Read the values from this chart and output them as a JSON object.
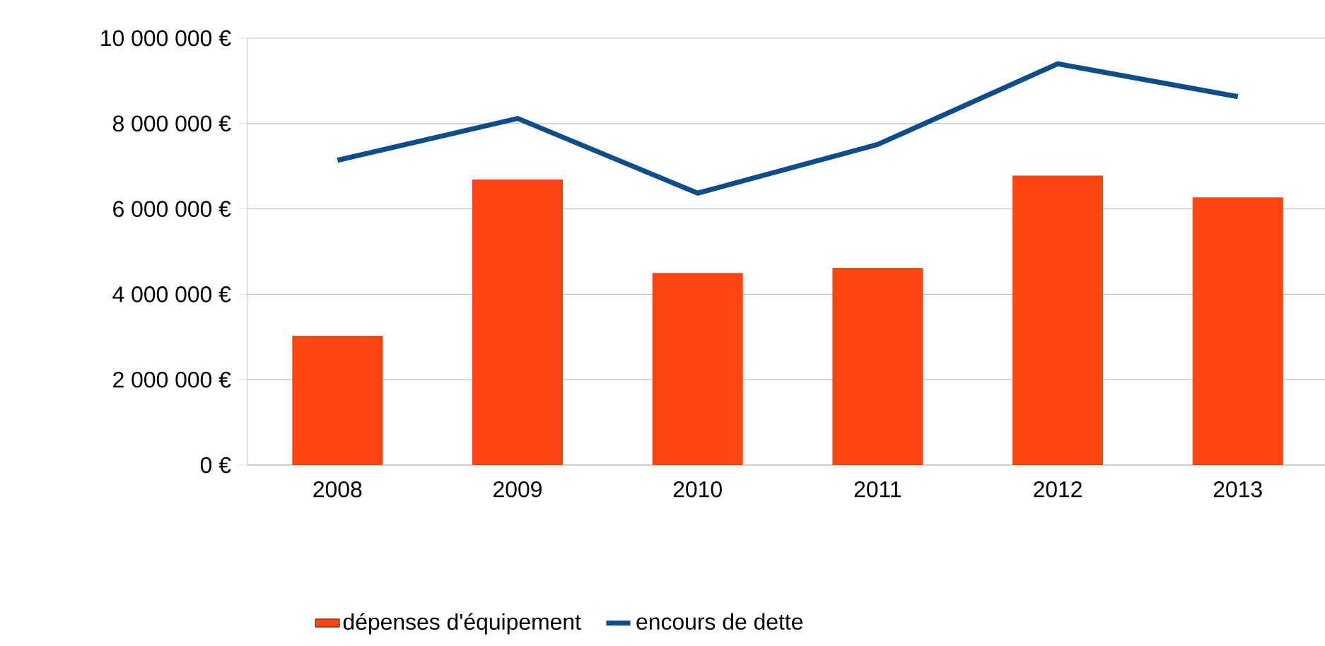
{
  "chart_data": {
    "type": "bar",
    "categories": [
      "2008",
      "2009",
      "2010",
      "2011",
      "2012",
      "2013"
    ],
    "series": [
      {
        "name": "dépenses d'équipement",
        "color": "#ff4411",
        "values": [
          3030000,
          6690000,
          4500000,
          4620000,
          6780000,
          6270000
        ]
      },
      {
        "name": "encours de dette",
        "type": "line",
        "color": "#0d4d8a",
        "values": [
          7140000,
          8120000,
          6370000,
          7510000,
          9400000,
          8630000
        ]
      }
    ],
    "ylim": [
      0,
      10000000
    ],
    "yticks": [
      {
        "value": 0,
        "label": "0 €"
      },
      {
        "value": 2000000,
        "label": "2 000 000 €"
      },
      {
        "value": 4000000,
        "label": "4 000 000 €"
      },
      {
        "value": 6000000,
        "label": "6 000 000 €"
      },
      {
        "value": 8000000,
        "label": "8 000 000 €"
      },
      {
        "value": 10000000,
        "label": "10 000 000 €"
      }
    ],
    "grid": "y",
    "legend": "bottom",
    "marker": "none",
    "line_style": "solid"
  }
}
